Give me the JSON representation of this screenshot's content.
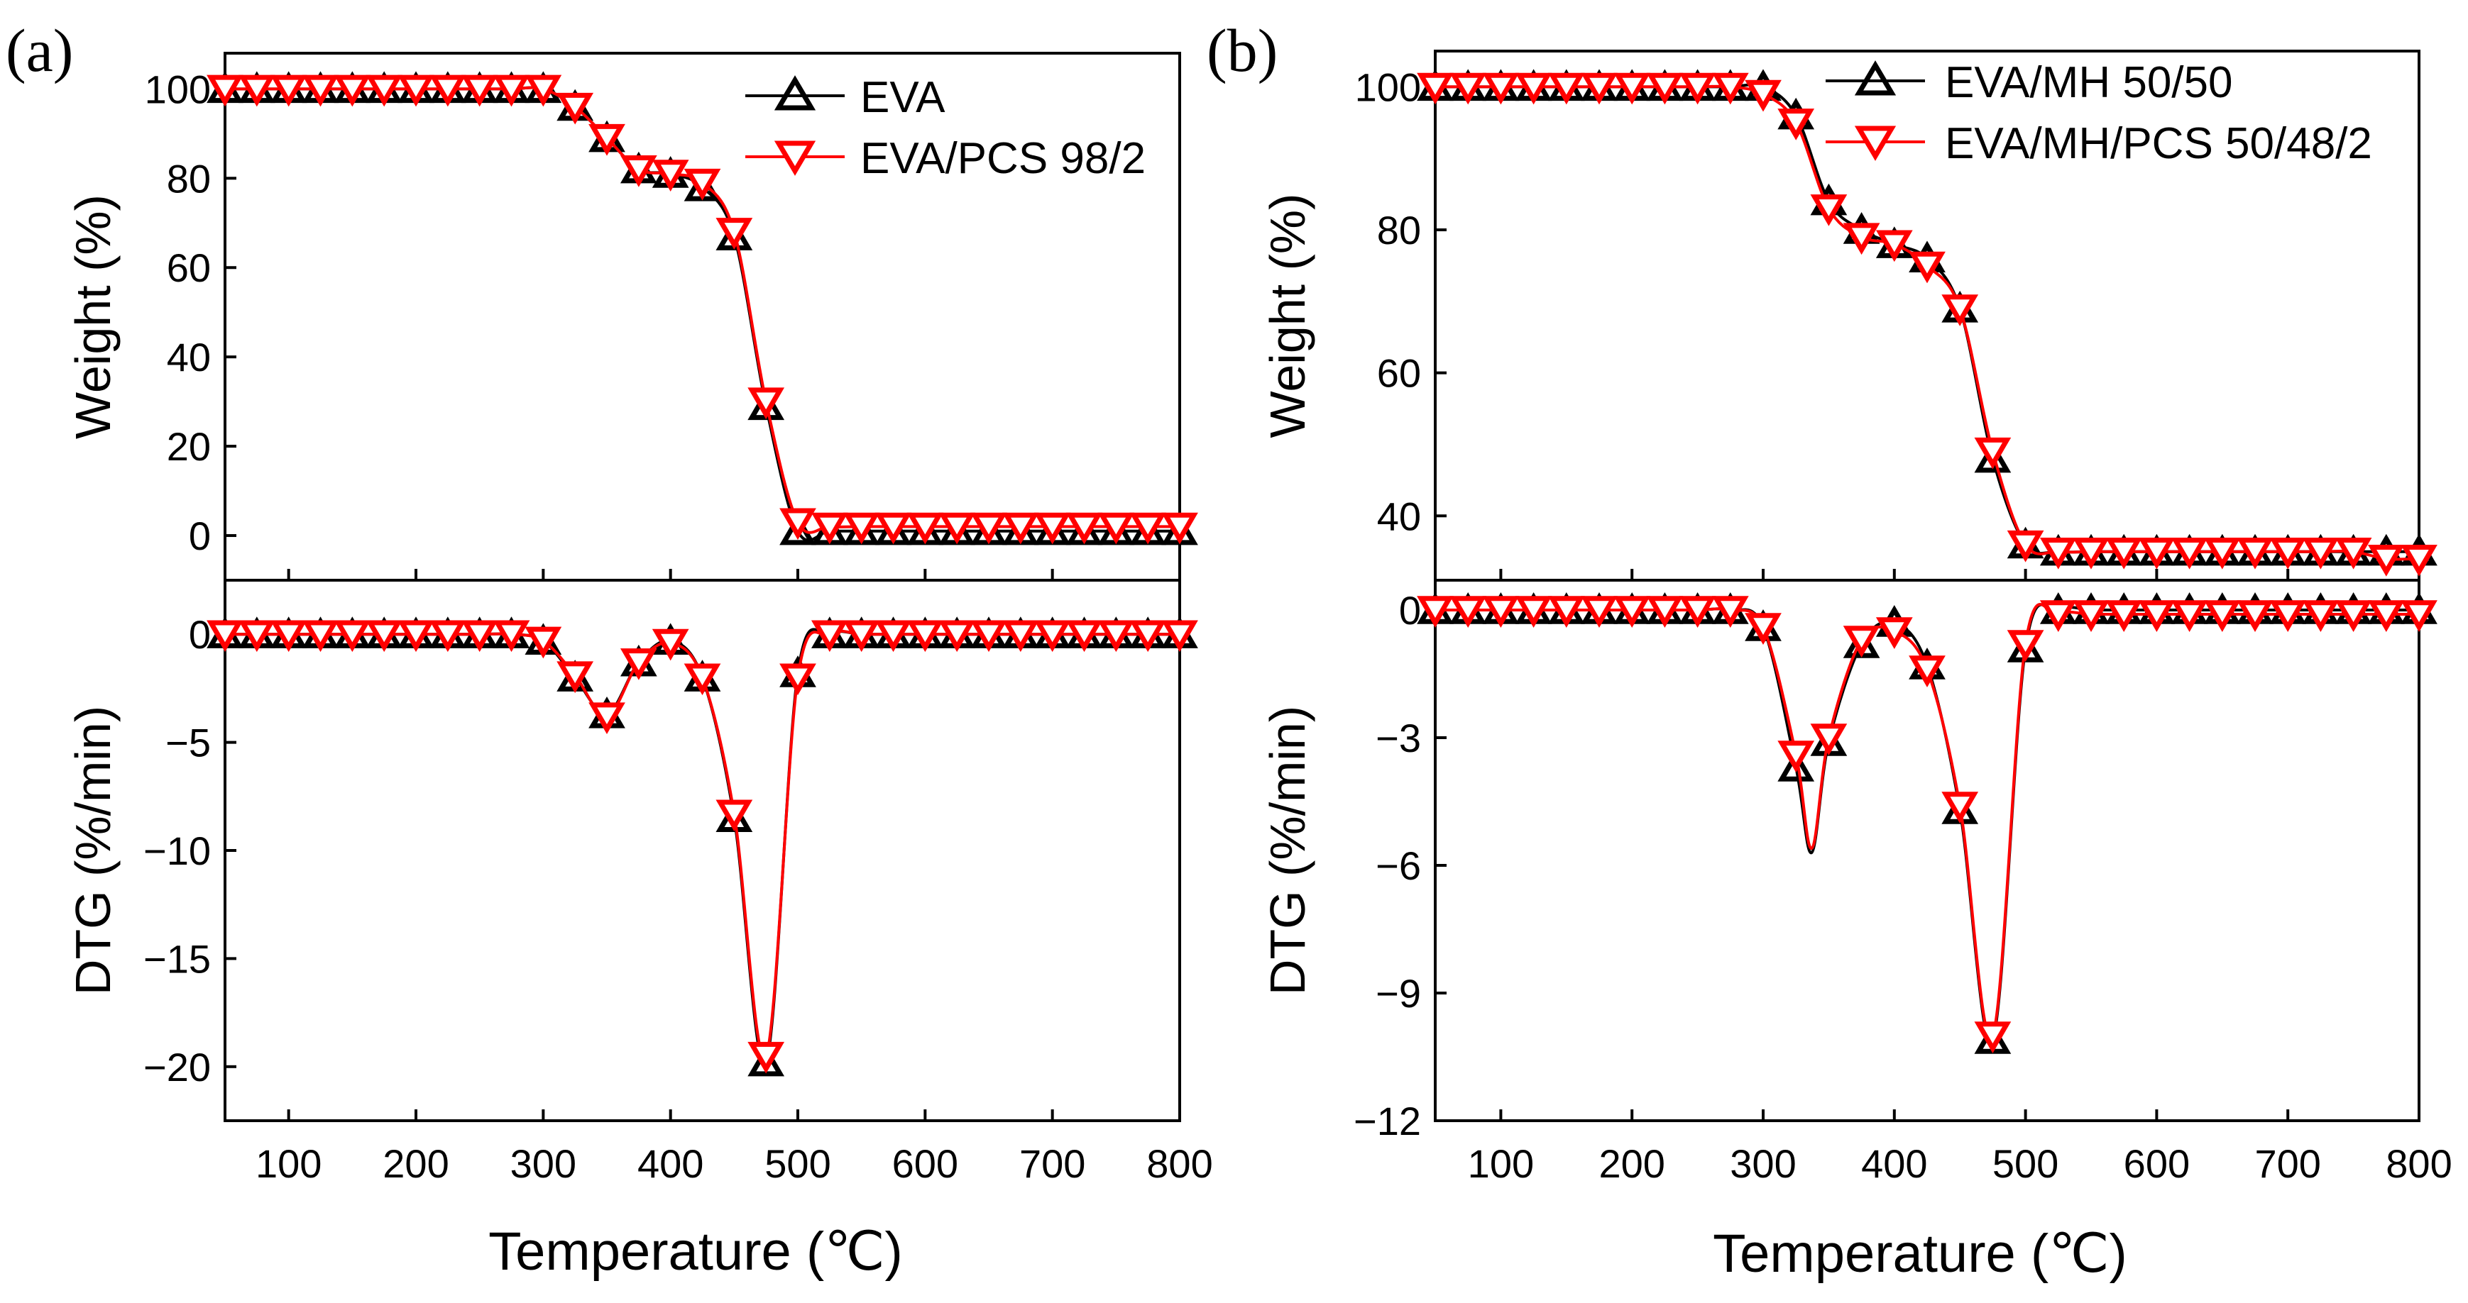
{
  "colors": {
    "series_a": "#000000",
    "series_b": "#ff0000",
    "axis": "#000000",
    "background": "#ffffff"
  },
  "panels": [
    {
      "id": "a",
      "letter": "(a)",
      "xlabel": "Temperature (℃)",
      "legend": [
        "EVA",
        "EVA/PCS 98/2"
      ]
    },
    {
      "id": "b",
      "letter": "(b)",
      "xlabel": "Temperature (℃)",
      "legend": [
        "EVA/MH 50/50",
        "EVA/MH/PCS 50/48/2"
      ]
    }
  ],
  "chart_data": [
    {
      "panel": "a",
      "subplot": "top",
      "type": "line",
      "title": "",
      "xlabel": "Temperature (℃)",
      "ylabel": "Weight (%)",
      "xlim": [
        50,
        800
      ],
      "ylim": [
        -10,
        108
      ],
      "xticks": [
        100,
        200,
        300,
        400,
        500,
        600,
        700,
        800
      ],
      "yticks": [
        0,
        20,
        40,
        60,
        80,
        100
      ],
      "legend_position": "top-right",
      "x": [
        50,
        75,
        100,
        125,
        150,
        175,
        200,
        225,
        250,
        275,
        300,
        325,
        350,
        375,
        400,
        425,
        450,
        475,
        500,
        525,
        550,
        575,
        600,
        625,
        650,
        675,
        700,
        725,
        750,
        775,
        800
      ],
      "series": [
        {
          "name": "EVA",
          "marker": "triangle-up",
          "color": "#000000",
          "values": [
            100,
            100,
            100,
            100,
            100,
            100,
            100,
            100,
            100,
            100,
            100,
            96,
            89,
            82,
            81,
            78,
            67,
            29,
            1,
            1,
            1,
            1,
            1,
            1,
            1,
            1,
            1,
            1,
            1,
            1,
            1
          ]
        },
        {
          "name": "EVA/PCS 98/2",
          "marker": "triangle-down",
          "color": "#ff0000",
          "values": [
            100,
            100,
            100,
            100,
            100,
            100,
            100,
            100,
            100,
            100,
            100,
            96,
            89,
            82,
            81,
            79,
            68,
            30,
            3,
            2,
            2,
            2,
            2,
            2,
            2,
            2,
            2,
            2,
            2,
            2,
            2
          ]
        }
      ]
    },
    {
      "panel": "a",
      "subplot": "bottom",
      "type": "line",
      "title": "",
      "xlabel": "Temperature (℃)",
      "ylabel": "DTG (%/min)",
      "xlim": [
        50,
        800
      ],
      "ylim": [
        -22.5,
        2.5
      ],
      "xticks": [
        100,
        200,
        300,
        400,
        500,
        600,
        700,
        800
      ],
      "yticks": [
        0,
        -5,
        -10,
        -15,
        -20
      ],
      "x": [
        50,
        75,
        100,
        125,
        150,
        175,
        200,
        225,
        250,
        275,
        300,
        325,
        350,
        375,
        400,
        425,
        450,
        475,
        500,
        525,
        550,
        575,
        600,
        625,
        650,
        675,
        700,
        725,
        750,
        775,
        800
      ],
      "series": [
        {
          "name": "EVA",
          "marker": "triangle-up",
          "color": "#000000",
          "values": [
            0,
            0,
            0,
            0,
            0,
            0,
            0,
            0,
            0,
            0,
            -0.3,
            -2,
            -3.7,
            -1.3,
            -0.3,
            -2,
            -8.5,
            -19.8,
            -1.8,
            0,
            0,
            0,
            0,
            0,
            0,
            0,
            0,
            0,
            0,
            0,
            0
          ]
        },
        {
          "name": "EVA/PCS 98/2",
          "marker": "triangle-down",
          "color": "#ff0000",
          "values": [
            0,
            0,
            0,
            0,
            0,
            0,
            0,
            0,
            0,
            0,
            -0.3,
            -1.9,
            -3.8,
            -1.3,
            -0.4,
            -2,
            -8.3,
            -19.5,
            -2,
            0,
            0,
            0,
            0,
            0,
            0,
            0,
            0,
            0,
            0,
            0,
            0
          ]
        }
      ]
    },
    {
      "panel": "b",
      "subplot": "top",
      "type": "line",
      "title": "",
      "xlabel": "Temperature (℃)",
      "ylabel": "Weight (%)",
      "xlim": [
        50,
        800
      ],
      "ylim": [
        31,
        105
      ],
      "xticks": [
        100,
        200,
        300,
        400,
        500,
        600,
        700,
        800
      ],
      "yticks": [
        40,
        60,
        80,
        100
      ],
      "legend_position": "top-right",
      "x": [
        50,
        75,
        100,
        125,
        150,
        175,
        200,
        225,
        250,
        275,
        300,
        325,
        350,
        375,
        400,
        425,
        450,
        475,
        500,
        525,
        550,
        575,
        600,
        625,
        650,
        675,
        700,
        725,
        750,
        775,
        800
      ],
      "series": [
        {
          "name": "EVA/MH 50/50",
          "marker": "triangle-up",
          "color": "#000000",
          "values": [
            100,
            100,
            100,
            100,
            100,
            100,
            100,
            100,
            100,
            100,
            100,
            96,
            84,
            80,
            78,
            76,
            69,
            48,
            36,
            35,
            35,
            35,
            35,
            35,
            35,
            35,
            35,
            35,
            35,
            35,
            35
          ]
        },
        {
          "name": "EVA/MH/PCS 50/48/2",
          "marker": "triangle-down",
          "color": "#ff0000",
          "values": [
            100,
            100,
            100,
            100,
            100,
            100,
            100,
            100,
            100,
            100,
            99,
            95,
            83,
            79,
            78,
            75,
            69,
            49,
            36,
            35,
            35,
            35,
            35,
            35,
            35,
            35,
            35,
            35,
            35,
            34,
            34
          ]
        }
      ]
    },
    {
      "panel": "b",
      "subplot": "bottom",
      "type": "line",
      "title": "",
      "xlabel": "Temperature (℃)",
      "ylabel": "DTG (%/min)",
      "xlim": [
        50,
        800
      ],
      "ylim": [
        -12,
        0.7
      ],
      "xticks": [
        100,
        200,
        300,
        400,
        500,
        600,
        700,
        800
      ],
      "yticks": [
        0,
        -3,
        -6,
        -9,
        -12
      ],
      "x": [
        50,
        75,
        100,
        125,
        150,
        175,
        200,
        225,
        250,
        275,
        300,
        325,
        337,
        350,
        375,
        400,
        425,
        450,
        475,
        500,
        525,
        550,
        575,
        600,
        625,
        650,
        675,
        700,
        725,
        750,
        775,
        800
      ],
      "series": [
        {
          "name": "EVA/MH 50/50",
          "marker": "triangle-up",
          "color": "#000000",
          "values": [
            0,
            0,
            0,
            0,
            0,
            0,
            0,
            0,
            0,
            0,
            -0.4,
            -3.7,
            -5.7,
            -3.1,
            -0.8,
            -0.3,
            -1.3,
            -4.7,
            -10.1,
            -0.9,
            0,
            0,
            0,
            0,
            0,
            0,
            0,
            0,
            0,
            0,
            0,
            0
          ]
        },
        {
          "name": "EVA/MH/PCS 50/48/2",
          "marker": "triangle-down",
          "color": "#ff0000",
          "values": [
            0,
            0,
            0,
            0,
            0,
            0,
            0,
            0,
            0,
            0,
            -0.4,
            -3.4,
            -5.6,
            -3.0,
            -0.7,
            -0.5,
            -1.4,
            -4.6,
            -10.0,
            -0.8,
            -0.1,
            -0.1,
            -0.1,
            -0.1,
            -0.1,
            -0.1,
            -0.1,
            -0.1,
            -0.1,
            -0.1,
            -0.1,
            -0.1
          ]
        }
      ]
    }
  ]
}
